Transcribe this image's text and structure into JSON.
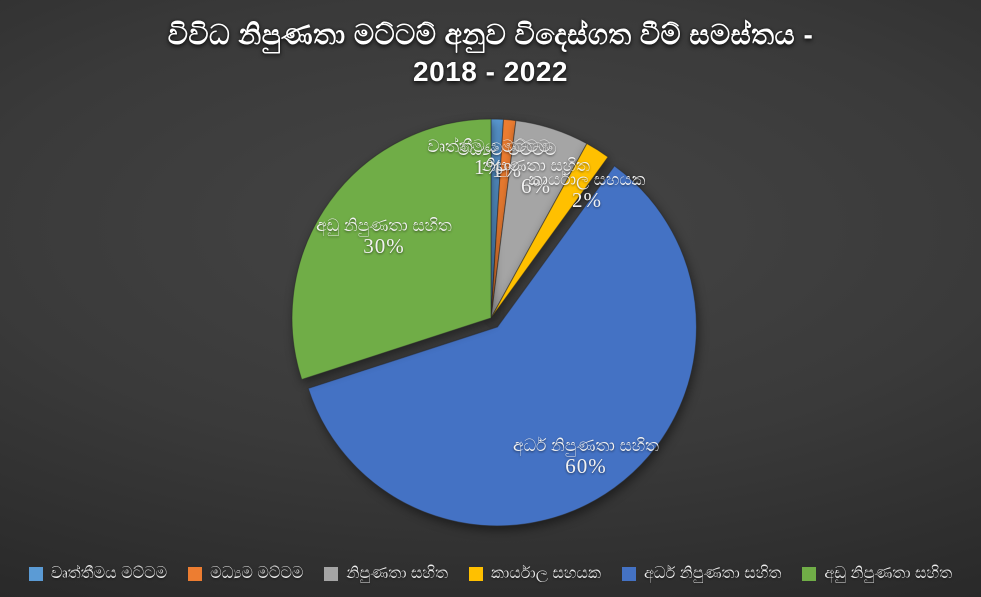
{
  "title": {
    "line1": "විවිධ නිපුණතා මට්ටම් අනුව විදෙස්ගත වීම් සමස්තය -",
    "line2": "2018 - 2022"
  },
  "colors": {
    "background_center": "#454545",
    "background_edge": "#1c1c1c",
    "text": "#ffffff"
  },
  "chart_data": {
    "type": "pie",
    "title": "විවිධ නිපුණතා මට්ටම් අනුව විදෙස්ගත වීම් සමස්තය - 2018 - 2022",
    "legend_position": "bottom",
    "start_angle_deg": 0,
    "direction": "clockwise",
    "slices": [
      {
        "slug": "professional-level",
        "label": "වෘත්තීමය මට්ටම",
        "value_pct": 1,
        "display_pct": "1%",
        "color": "#5B9BD5",
        "exploded": false
      },
      {
        "slug": "middle-level",
        "label": "මධ්‍යම මට්ටම",
        "value_pct": 1,
        "display_pct": "1%",
        "color": "#ED7D31",
        "exploded": false
      },
      {
        "slug": "skilled",
        "label": "නිපුණතා සහිත",
        "value_pct": 6,
        "display_pct": "6%",
        "color": "#A5A5A5",
        "exploded": false
      },
      {
        "slug": "office-assistant",
        "label": "කාර්යාල සහයක",
        "value_pct": 2,
        "display_pct": "2%",
        "color": "#FFC000",
        "exploded": false
      },
      {
        "slug": "semi-skilled",
        "label": "අර්ධ නිපුණතා සහිත",
        "value_pct": 60,
        "display_pct": "60%",
        "color": "#4472C4",
        "exploded": true
      },
      {
        "slug": "low-skilled",
        "label": "අඩු නිපුණතා සහිත",
        "value_pct": 30,
        "display_pct": "30%",
        "color": "#70AD47",
        "exploded": false
      }
    ]
  },
  "legend": {
    "items": [
      {
        "label": "වෘත්තීමය මට්ටම",
        "color": "#5B9BD5"
      },
      {
        "label": "මධ්‍යම මට්ටම",
        "color": "#ED7D31"
      },
      {
        "label": "නිපුණතා සහිත",
        "color": "#A5A5A5"
      },
      {
        "label": "කාර්යාල සහයක",
        "color": "#FFC000"
      },
      {
        "label": "අර්ධ නිපුණතා සහිත",
        "color": "#4472C4"
      },
      {
        "label": "අඩු නිපුණතා සහිත",
        "color": "#70AD47"
      }
    ]
  }
}
